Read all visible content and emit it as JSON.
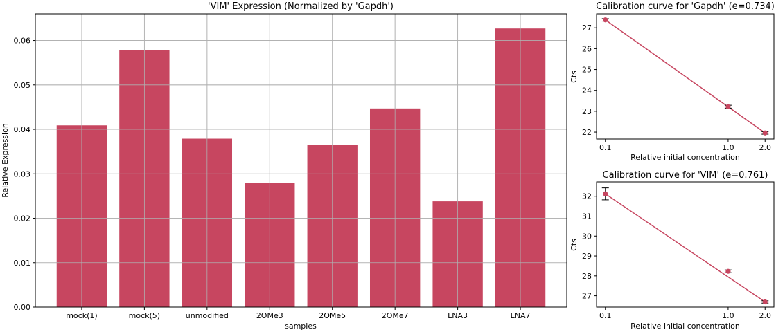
{
  "colors": {
    "bar": "#c74660",
    "line": "#c74660",
    "grid": "#b0b0b0",
    "axis": "#000000",
    "errorbar": "#000000"
  },
  "chart_data": [
    {
      "type": "bar",
      "title": "'VIM' Expression (Normalized by 'Gapdh')",
      "xlabel": "samples",
      "ylabel": "Relative Expression",
      "categories": [
        "mock(1)",
        "mock(5)",
        "unmodified",
        "2OMe3",
        "2OMe5",
        "2OMe7",
        "LNA3",
        "LNA7"
      ],
      "values": [
        0.0409,
        0.0579,
        0.0379,
        0.028,
        0.0365,
        0.0447,
        0.0238,
        0.0627
      ],
      "ylim": [
        0,
        0.066
      ],
      "yticks": [
        0.0,
        0.01,
        0.02,
        0.03,
        0.04,
        0.05,
        0.06
      ],
      "ytick_labels": [
        "0.00",
        "0.01",
        "0.02",
        "0.03",
        "0.04",
        "0.05",
        "0.06"
      ],
      "grid": true
    },
    {
      "type": "line",
      "title": "Calibration curve for 'Gapdh' (e=0.734)",
      "xlabel": "Relative initial concentration",
      "ylabel": "Cts",
      "x": [
        0.1,
        1.0,
        2.0
      ],
      "y": [
        27.38,
        23.22,
        21.96
      ],
      "yerr": [
        0.06,
        0.07,
        0.06
      ],
      "fit": [
        [
          0.1,
          27.38
        ],
        [
          2.0,
          21.96
        ]
      ],
      "xscale": "log",
      "xticks": [
        0.1,
        1.0,
        2.0
      ],
      "xtick_labels": [
        "0.1",
        "1.0",
        "2.0"
      ],
      "yticks": [
        22,
        23,
        24,
        25,
        26,
        27
      ],
      "ytick_labels": [
        "22",
        "23",
        "24",
        "25",
        "26",
        "27"
      ],
      "ylim": [
        21.67,
        27.67
      ],
      "grid": false
    },
    {
      "type": "line",
      "title": "Calibration curve for 'VIM' (e=0.761)",
      "xlabel": "Relative initial concentration",
      "ylabel": "Cts",
      "x": [
        0.1,
        1.0,
        2.0
      ],
      "y": [
        32.12,
        28.23,
        26.69
      ],
      "yerr": [
        0.3,
        0.07,
        0.06
      ],
      "fit": [
        [
          0.1,
          32.12
        ],
        [
          2.0,
          26.69
        ]
      ],
      "xscale": "log",
      "xticks": [
        0.1,
        1.0,
        2.0
      ],
      "xtick_labels": [
        "0.1",
        "1.0",
        "2.0"
      ],
      "yticks": [
        27,
        28,
        29,
        30,
        31,
        32
      ],
      "ytick_labels": [
        "27",
        "28",
        "29",
        "30",
        "31",
        "32"
      ],
      "ylim": [
        26.43,
        32.72
      ],
      "grid": false
    }
  ]
}
